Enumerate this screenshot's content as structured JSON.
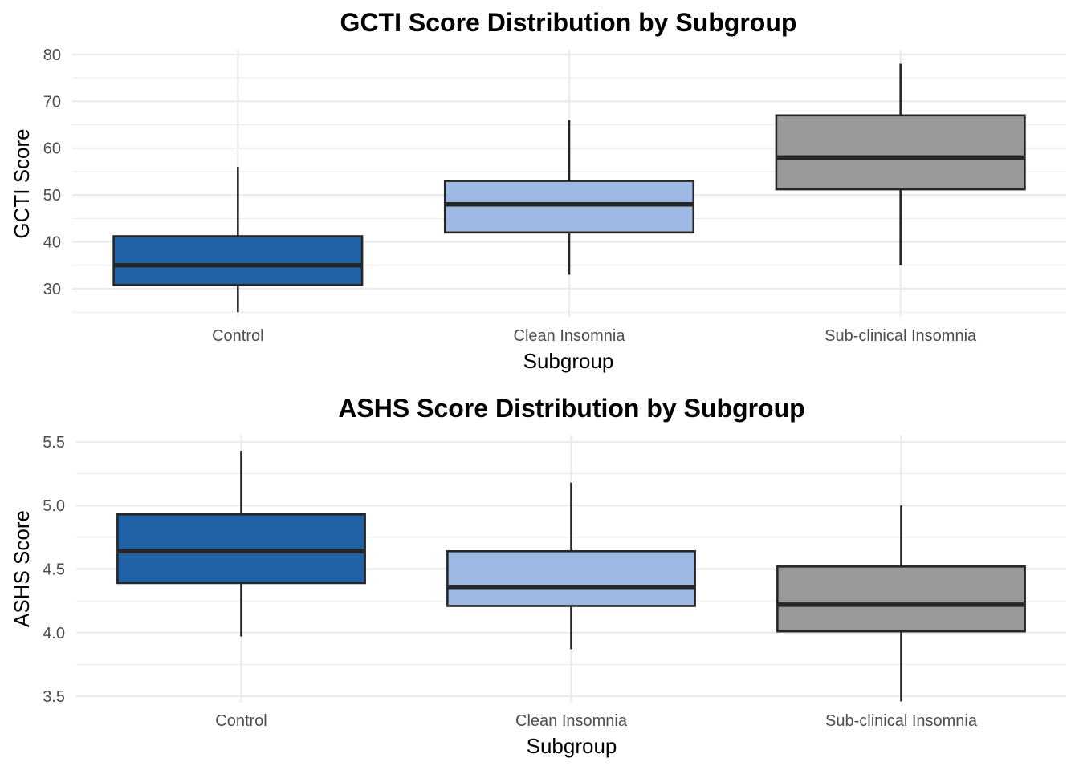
{
  "chart_data": [
    {
      "type": "box",
      "title": "GCTI Score Distribution by Subgroup",
      "xlabel": "Subgroup",
      "ylabel": "GCTI Score",
      "ylim": [
        24,
        81
      ],
      "yticks": [
        30,
        40,
        50,
        60,
        70,
        80
      ],
      "ytick_labels": [
        "30",
        "40",
        "50",
        "60",
        "70",
        "80"
      ],
      "categories": [
        "Control",
        "Clean Insomnia",
        "Sub-clinical Insomnia"
      ],
      "colors": [
        "#1f63a6",
        "#9db8e2",
        "#999999"
      ],
      "boxes": [
        {
          "whisker_low": 25,
          "q1": 30.8,
          "median": 35,
          "q3": 41.2,
          "whisker_high": 56
        },
        {
          "whisker_low": 33,
          "q1": 42,
          "median": 48,
          "q3": 53,
          "whisker_high": 66
        },
        {
          "whisker_low": 35,
          "q1": 51.2,
          "median": 58,
          "q3": 67,
          "whisker_high": 78
        }
      ],
      "grid": true
    },
    {
      "type": "box",
      "title": "ASHS Score Distribution by Subgroup",
      "xlabel": "Subgroup",
      "ylabel": "ASHS Score",
      "ylim": [
        3.45,
        5.55
      ],
      "yticks": [
        3.5,
        4.0,
        4.5,
        5.0,
        5.5
      ],
      "ytick_labels": [
        "3.5",
        "4.0",
        "4.5",
        "5.0",
        "5.5"
      ],
      "categories": [
        "Control",
        "Clean Insomnia",
        "Sub-clinical Insomnia"
      ],
      "colors": [
        "#1f63a6",
        "#9db8e2",
        "#999999"
      ],
      "boxes": [
        {
          "whisker_low": 3.97,
          "q1": 4.39,
          "median": 4.64,
          "q3": 4.93,
          "whisker_high": 5.43
        },
        {
          "whisker_low": 3.87,
          "q1": 4.21,
          "median": 4.36,
          "q3": 4.64,
          "whisker_high": 5.18
        },
        {
          "whisker_low": 3.46,
          "q1": 4.01,
          "median": 4.22,
          "q3": 4.52,
          "whisker_high": 5.0
        }
      ],
      "grid": true
    }
  ]
}
